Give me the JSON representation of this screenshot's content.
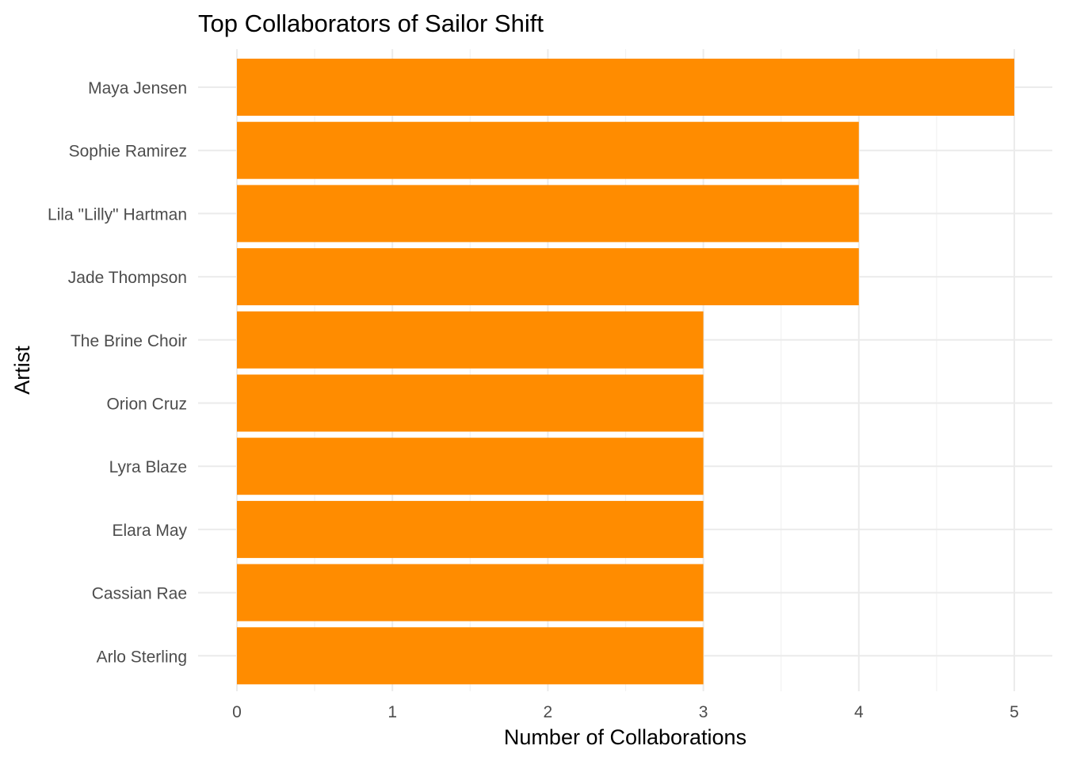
{
  "chart_data": {
    "type": "bar",
    "orientation": "horizontal",
    "title": "Top Collaborators of Sailor Shift",
    "xlabel": "Number of Collaborations",
    "ylabel": "Artist",
    "categories": [
      "Maya Jensen",
      "Sophie Ramirez",
      "Lila \"Lilly\" Hartman",
      "Jade Thompson",
      "The Brine Choir",
      "Orion Cruz",
      "Lyra Blaze",
      "Elara May",
      "Cassian Rae",
      "Arlo Sterling"
    ],
    "values": [
      5,
      4,
      4,
      4,
      3,
      3,
      3,
      3,
      3,
      3
    ],
    "xlim": [
      0,
      5
    ],
    "x_ticks": [
      "0",
      "1",
      "2",
      "3",
      "4",
      "5"
    ],
    "grid": true,
    "legend": "none",
    "bar_color": "#FF8C00"
  }
}
